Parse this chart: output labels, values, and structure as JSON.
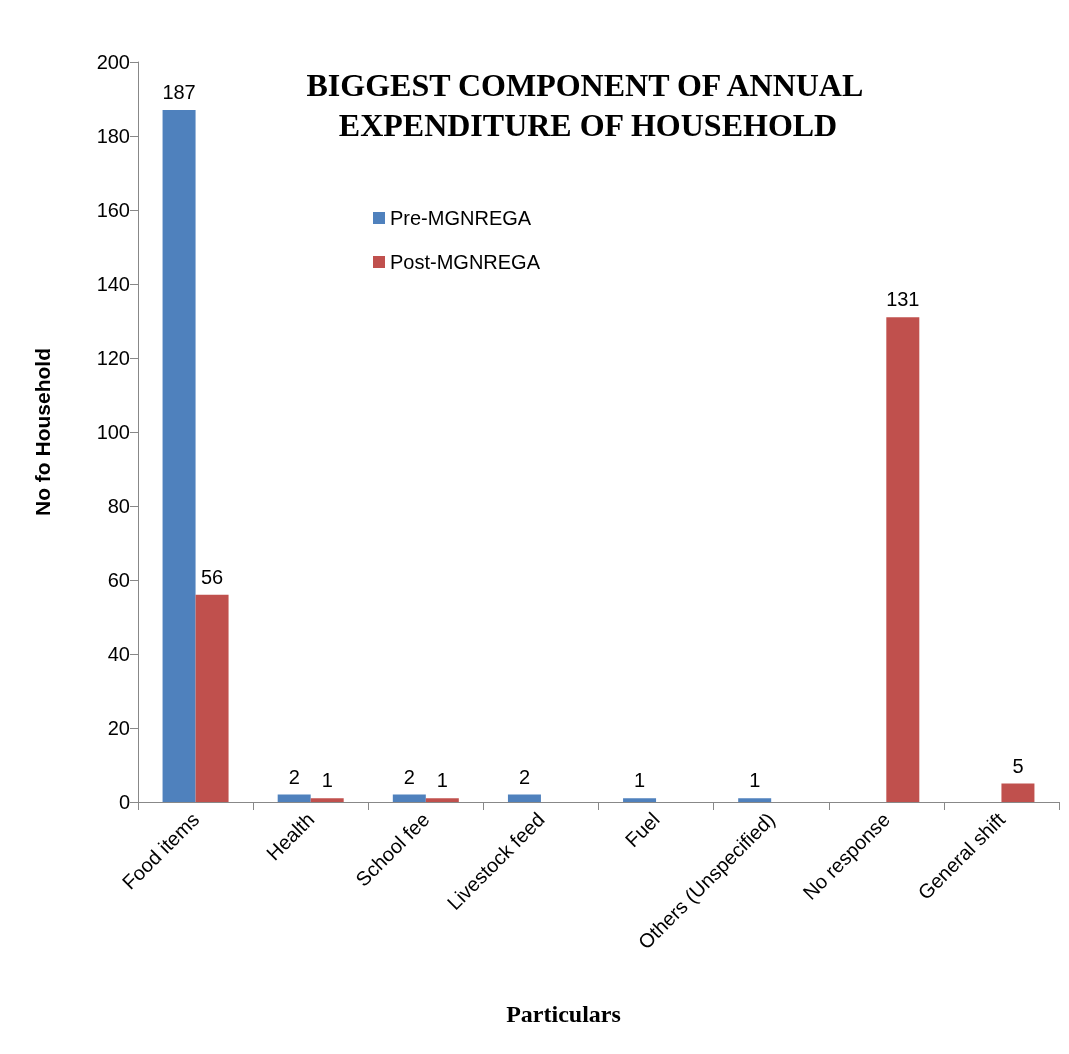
{
  "chart_data": {
    "type": "bar",
    "title": "BIGGEST COMPONENT OF ANNUAL EXPENDITURE OF HOUSEHOLD",
    "xlabel": "Particulars",
    "ylabel": "No fo Household",
    "categories": [
      "Food items",
      "Health",
      "School fee",
      "Livestock feed",
      "Fuel",
      "Others (Unspecified)",
      "No response",
      "General shift"
    ],
    "series": [
      {
        "name": "Pre-MGNREGA",
        "color": "#4f81bd",
        "values": [
          187,
          2,
          2,
          2,
          1,
          1,
          null,
          null
        ]
      },
      {
        "name": "Post-MGNREGA",
        "color": "#c0504d",
        "values": [
          56,
          1,
          1,
          null,
          null,
          null,
          131,
          5
        ]
      }
    ],
    "ylim": [
      0,
      200
    ],
    "yticks": [
      0,
      20,
      40,
      60,
      80,
      100,
      120,
      140,
      160,
      180,
      200
    ],
    "grid": false,
    "legend": "top",
    "data_labels": true
  }
}
